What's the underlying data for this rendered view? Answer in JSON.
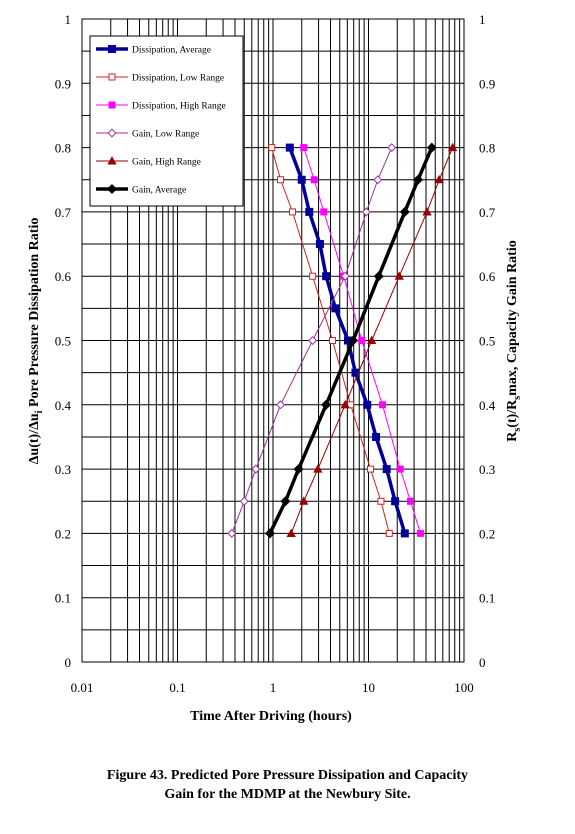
{
  "chart_data": {
    "type": "scatter",
    "xlabel": "Time After Driving (hours)",
    "ylabel_left_parts": [
      "Δu(t)/Δu",
      "i",
      " Pore Pressure Dissipation Ratio"
    ],
    "ylabel_right_parts": [
      "R",
      "s",
      "(t)/R",
      "s",
      "max, Capacity Gain Ratio"
    ],
    "x_scale": "log",
    "xlim": [
      0.01,
      100
    ],
    "ylim": [
      0,
      1
    ],
    "grid": true,
    "legend_position": "top-left",
    "x_tick_labels": [
      "0.01",
      "0.1",
      "1",
      "10",
      "100"
    ],
    "y_tick_labels": [
      "0",
      "0.1",
      "0.2",
      "0.3",
      "0.4",
      "0.5",
      "0.6",
      "0.7",
      "0.8",
      "0.9",
      "1"
    ],
    "series": [
      {
        "name": "Dissipation, Average",
        "color": "#000099",
        "marker": "square-filled",
        "line_width": 3.5,
        "points": [
          [
            1.5,
            0.8
          ],
          [
            2.0,
            0.75
          ],
          [
            2.4,
            0.7
          ],
          [
            3.1,
            0.65
          ],
          [
            3.6,
            0.6
          ],
          [
            4.5,
            0.55
          ],
          [
            6.1,
            0.5
          ],
          [
            7.3,
            0.45
          ],
          [
            9.7,
            0.4
          ],
          [
            12.0,
            0.35
          ],
          [
            15.5,
            0.3
          ],
          [
            19.0,
            0.25
          ],
          [
            24.0,
            0.2
          ]
        ]
      },
      {
        "name": "Dissipation, Low Range",
        "color": "#d32222",
        "marker": "square-open",
        "line_width": 1,
        "points": [
          [
            0.97,
            0.8
          ],
          [
            1.2,
            0.75
          ],
          [
            1.6,
            0.7
          ],
          [
            2.6,
            0.6
          ],
          [
            4.2,
            0.5
          ],
          [
            6.5,
            0.4
          ],
          [
            10.5,
            0.3
          ],
          [
            13.5,
            0.25
          ],
          [
            16.5,
            0.2
          ]
        ]
      },
      {
        "name": "Dissipation, High Range",
        "color": "#ff00ff",
        "marker": "square-filled",
        "line_width": 1,
        "points": [
          [
            2.1,
            0.8
          ],
          [
            2.7,
            0.75
          ],
          [
            3.4,
            0.7
          ],
          [
            5.5,
            0.6
          ],
          [
            8.5,
            0.5
          ],
          [
            14.0,
            0.4
          ],
          [
            21.5,
            0.3
          ],
          [
            27.5,
            0.25
          ],
          [
            35.0,
            0.2
          ]
        ]
      },
      {
        "name": "Gain, Low Range",
        "color": "#993399",
        "marker": "diamond-open",
        "line_width": 1,
        "points": [
          [
            0.37,
            0.2
          ],
          [
            0.5,
            0.25
          ],
          [
            0.66,
            0.3
          ],
          [
            1.2,
            0.4
          ],
          [
            2.6,
            0.5
          ],
          [
            5.7,
            0.6
          ],
          [
            9.5,
            0.7
          ],
          [
            12.5,
            0.75
          ],
          [
            17.5,
            0.8
          ]
        ]
      },
      {
        "name": "Gain, High Range",
        "color": "#990000",
        "marker": "triangle-filled",
        "line_width": 1,
        "points": [
          [
            1.55,
            0.2
          ],
          [
            2.1,
            0.25
          ],
          [
            2.95,
            0.3
          ],
          [
            5.7,
            0.4
          ],
          [
            10.8,
            0.5
          ],
          [
            21.0,
            0.6
          ],
          [
            41.0,
            0.7
          ],
          [
            55.0,
            0.75
          ],
          [
            76.0,
            0.8
          ]
        ]
      },
      {
        "name": "Gain, Average",
        "color": "#000000",
        "marker": "diamond-filled",
        "line_width": 3.5,
        "points": [
          [
            0.93,
            0.2
          ],
          [
            1.35,
            0.25
          ],
          [
            1.85,
            0.3
          ],
          [
            3.6,
            0.4
          ],
          [
            6.9,
            0.5
          ],
          [
            12.8,
            0.6
          ],
          [
            24.0,
            0.7
          ],
          [
            33.0,
            0.75
          ],
          [
            46.0,
            0.8
          ]
        ]
      }
    ]
  },
  "caption": {
    "line1": "Figure 43.  Predicted Pore Pressure Dissipation and Capacity",
    "line2": "Gain for the MDMP at the Newbury Site."
  }
}
